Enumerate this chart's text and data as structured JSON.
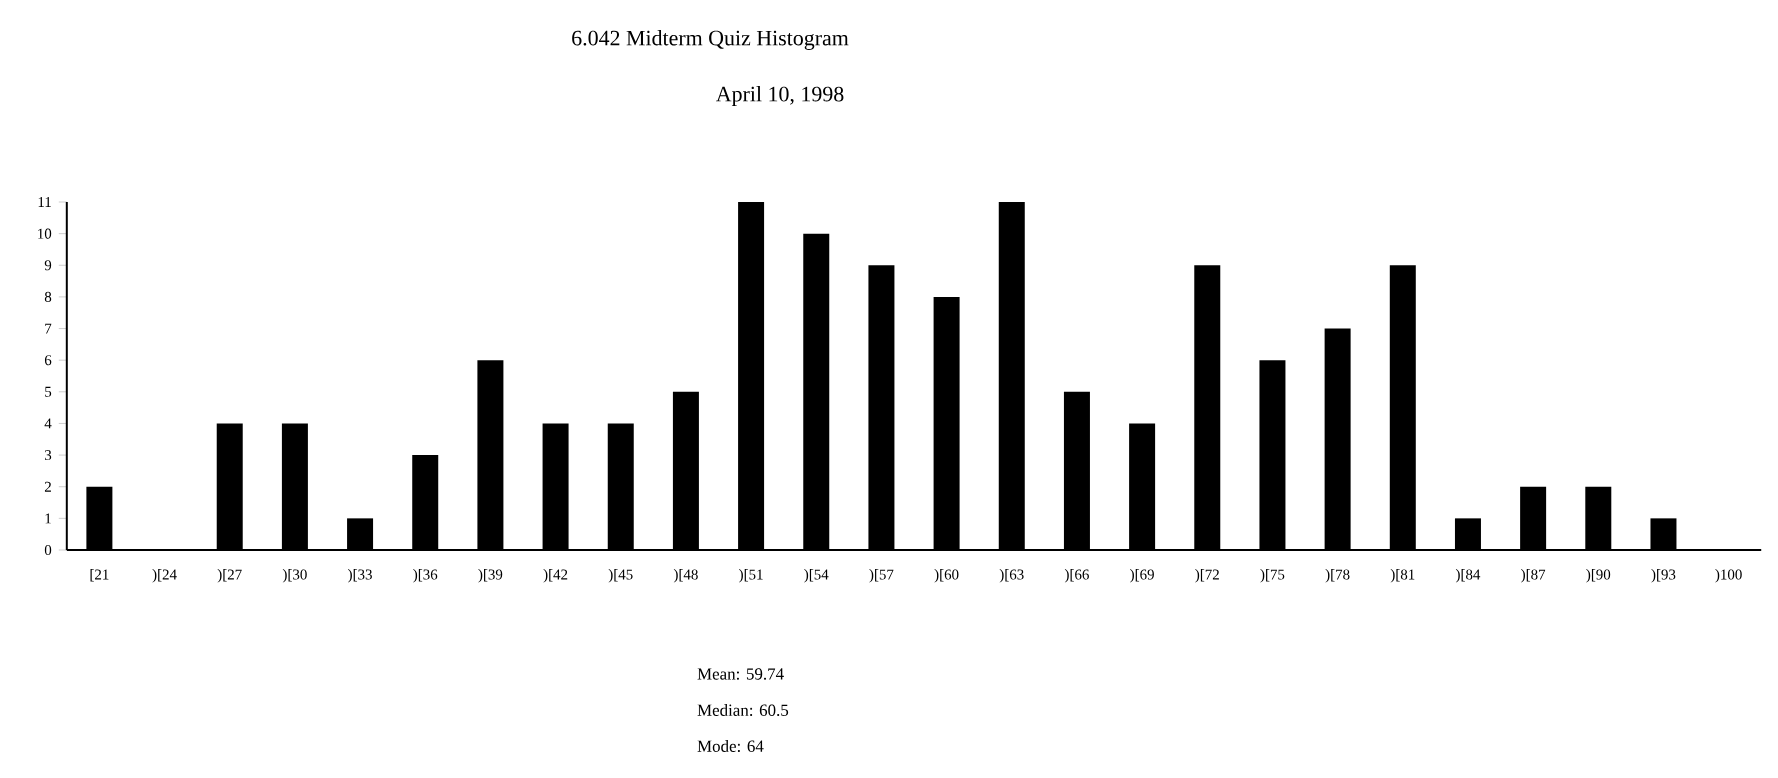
{
  "chart_data": {
    "type": "bar",
    "title": "6.042 Midterm Quiz Histogram",
    "subtitle": "April 10, 1998",
    "categories": [
      "[21",
      ")[24",
      ")[27",
      ")[30",
      ")[33",
      ")[36",
      ")[39",
      ")[42",
      ")[45",
      ")[48",
      ")[51",
      ")[54",
      ")[57",
      ")[60",
      ")[63",
      ")[66",
      ")[69",
      ")[72",
      ")[75",
      ")[78",
      ")[81",
      ")[84",
      ")[87",
      ")[90",
      ")[93",
      ")100"
    ],
    "values": [
      2,
      0,
      4,
      4,
      1,
      3,
      6,
      4,
      4,
      5,
      11,
      10,
      9,
      8,
      11,
      5,
      4,
      9,
      6,
      7,
      9,
      1,
      2,
      2,
      1,
      null
    ],
    "color": "#000000",
    "ylim": [
      0,
      11
    ],
    "yticks": [
      0,
      1,
      2,
      3,
      4,
      5,
      6,
      7,
      8,
      9,
      10,
      11
    ],
    "annotations": [
      "Mean:      59.74",
      "Median:    60.5",
      "Mode:         64"
    ]
  }
}
